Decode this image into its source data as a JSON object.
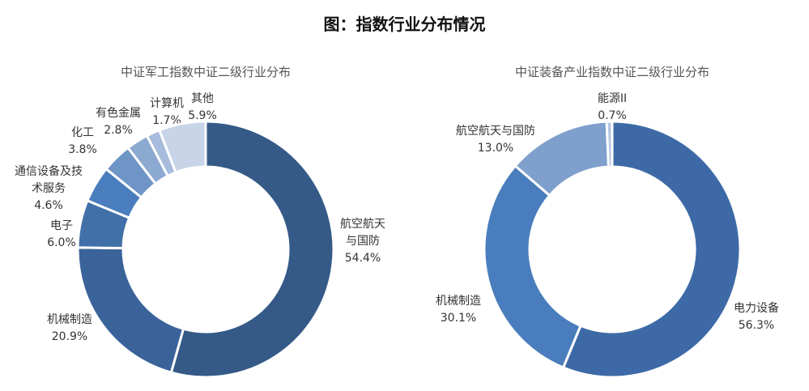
{
  "page_title": "图：指数行业分布情况",
  "chart_data": [
    {
      "type": "pie",
      "donut": true,
      "title": "中证军工指数中证二级行业分布",
      "slices": [
        {
          "label": "航空航天与国防",
          "display_label": [
            "航空航天",
            "与国防"
          ],
          "value": 54.4,
          "value_text": "54.4%",
          "color": "#355a87"
        },
        {
          "label": "机械制造",
          "display_label": [
            "机械制造"
          ],
          "value": 20.9,
          "value_text": "20.9%",
          "color": "#3a639a"
        },
        {
          "label": "电子",
          "display_label": [
            "电子"
          ],
          "value": 6.0,
          "value_text": "6.0%",
          "color": "#416fa8"
        },
        {
          "label": "通信设备及技术服务",
          "display_label": [
            "通信设备及技",
            "术服务"
          ],
          "value": 4.6,
          "value_text": "4.6%",
          "color": "#4a7dbd"
        },
        {
          "label": "化工",
          "display_label": [
            "化工"
          ],
          "value": 3.8,
          "value_text": "3.8%",
          "color": "#6f94c6"
        },
        {
          "label": "有色金属",
          "display_label": [
            "有色金属"
          ],
          "value": 2.8,
          "value_text": "2.8%",
          "color": "#8ca9d1"
        },
        {
          "label": "计算机",
          "display_label": [
            "计算机"
          ],
          "value": 1.7,
          "value_text": "1.7%",
          "color": "#a7bcdc"
        },
        {
          "label": "其他",
          "display_label": [
            "其他"
          ],
          "value": 5.9,
          "value_text": "5.9%",
          "color": "#c8d4e7"
        }
      ]
    },
    {
      "type": "pie",
      "donut": true,
      "title": "中证装备产业指数中证二级行业分布",
      "slices": [
        {
          "label": "电力设备",
          "display_label": [
            "电力设备"
          ],
          "value": 56.3,
          "value_text": "56.3%",
          "color": "#3d6aa6"
        },
        {
          "label": "机械制造",
          "display_label": [
            "机械制造"
          ],
          "value": 30.1,
          "value_text": "30.1%",
          "color": "#4a7dbd"
        },
        {
          "label": "航空航天与国防",
          "display_label": [
            "航空航天与国防"
          ],
          "value": 13.0,
          "value_text": "13.0%",
          "color": "#7f9fcc"
        },
        {
          "label": "能源II",
          "display_label": [
            "能源II"
          ],
          "value": 0.7,
          "value_text": "0.7%",
          "color": "#b4c6e2"
        }
      ]
    }
  ]
}
